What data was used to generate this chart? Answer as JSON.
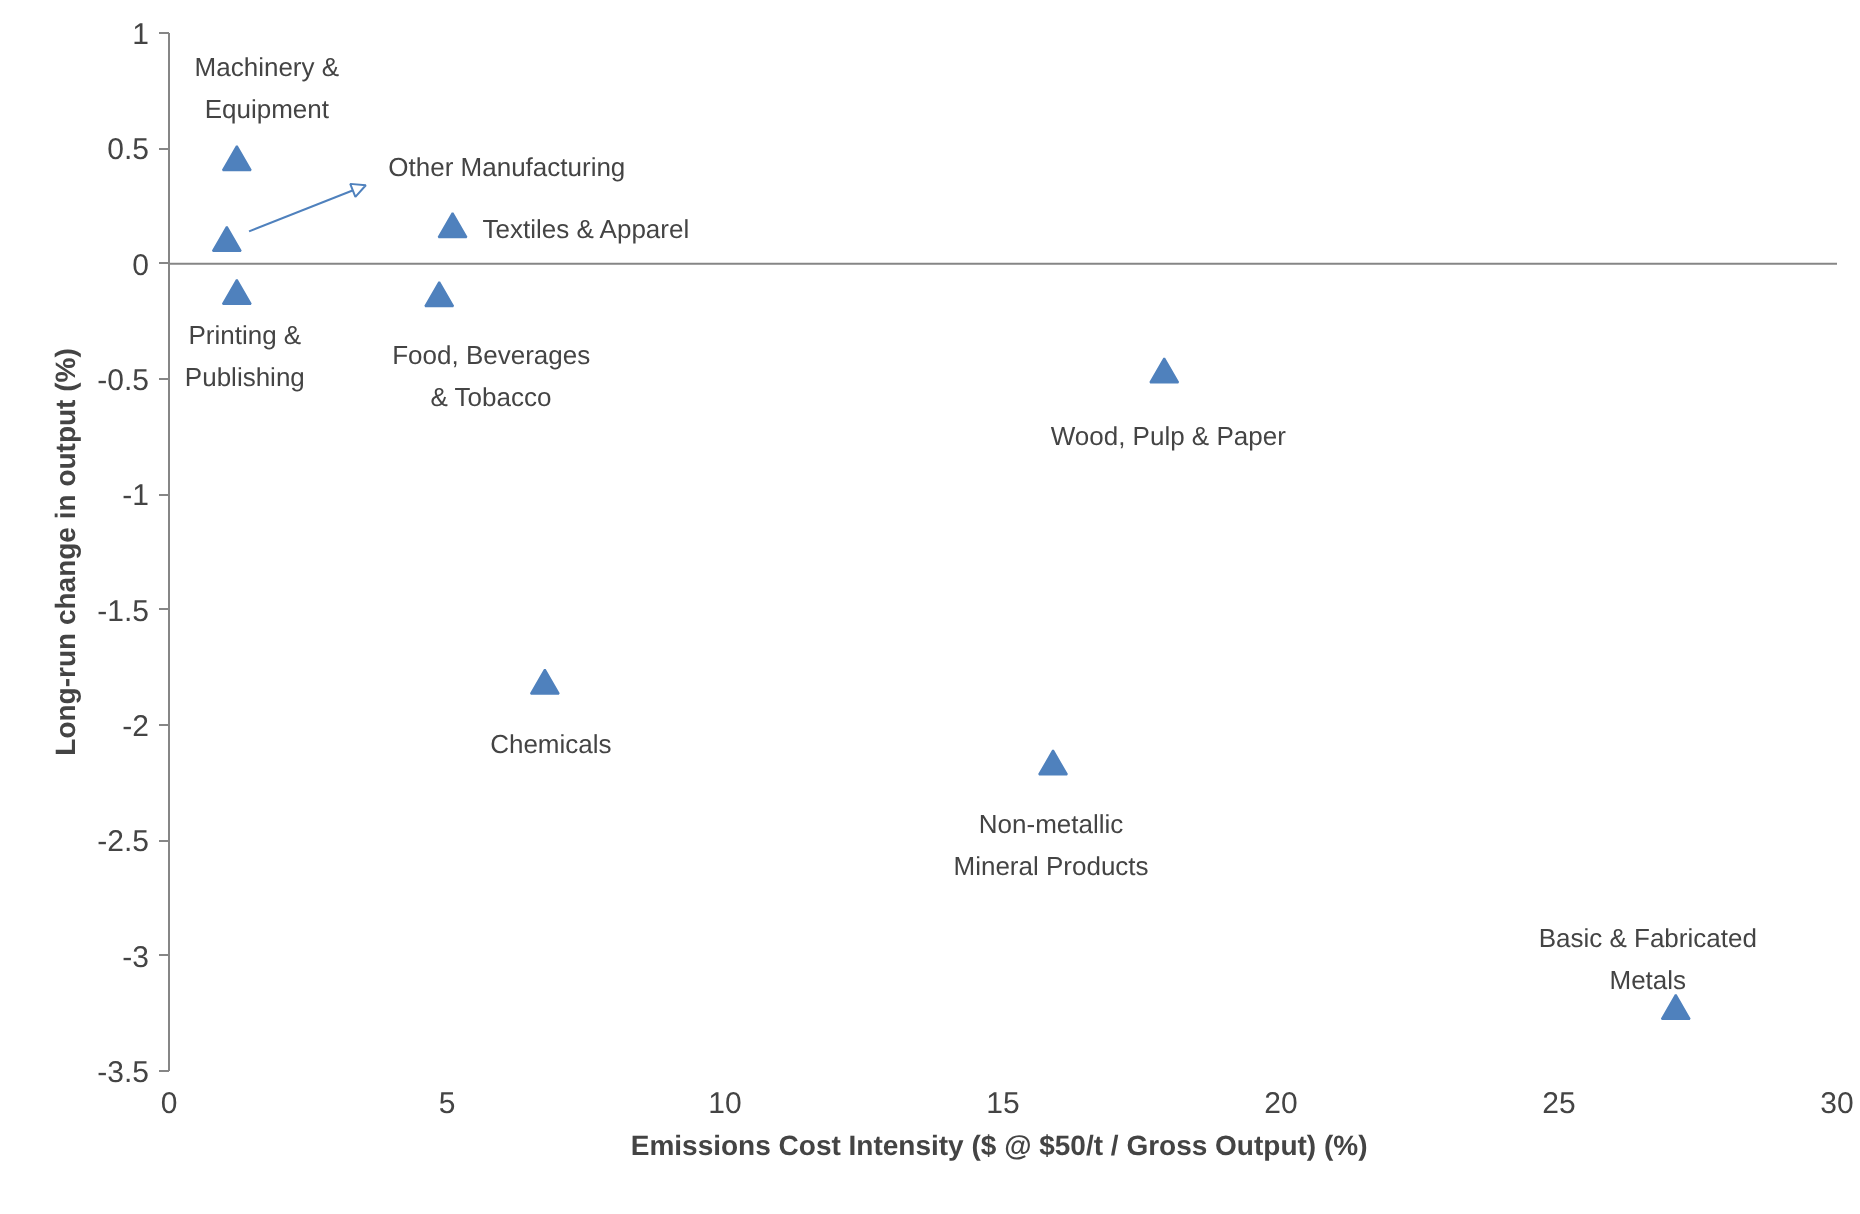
{
  "chart_data": {
    "type": "scatter",
    "xlabel": "Emissions Cost Intensity ($ @ $50/t / Gross Output)  (%)",
    "ylabel": "Long-run change in output (%)",
    "x": [
      1.22,
      1.04,
      1.22,
      5.1,
      4.86,
      17.9,
      6.76,
      15.9,
      27.1
    ],
    "series": [
      {
        "color": "#4f81bd",
        "values": [
          0.44,
          0.09,
          -0.14,
          0.15,
          -0.15,
          -0.48,
          -1.83,
          -2.18,
          -3.24
        ]
      }
    ],
    "marker": "triangle",
    "grid": false,
    "xlim": [
      0,
      30
    ],
    "xticks": [
      0,
      5,
      10,
      15,
      20,
      25,
      30
    ],
    "ylim": [
      -3.5,
      1
    ],
    "yticks": [
      1,
      0.5,
      0,
      -0.5,
      -1,
      -1.5,
      -2,
      -2.5,
      -3,
      -3.5
    ],
    "ref_lines": [
      {
        "axis": "y",
        "value": 0,
        "color": "#868686"
      }
    ],
    "annotations": [
      {
        "text": "Machinery &\nEquipment",
        "x": 1.22,
        "y": 0.44
      },
      "Other Manufacturing",
      {
        "text": "Printing &\nPublishing",
        "x": 1.22,
        "y": -0.14
      },
      {
        "text": "Textiles & Apparel",
        "x": 5.1,
        "y": 0.15
      },
      {
        "text": "Food, Beverages\n& Tobacco",
        "x": 4.86,
        "y": -0.15
      },
      {
        "text": "Wood, Pulp & Paper",
        "x": 17.9,
        "y": -0.48
      },
      {
        "text": "Chemicals",
        "x": 6.76,
        "y": -1.83
      },
      {
        "text": "Non-metallic\nMineral Products",
        "x": 15.9,
        "y": -2.18
      },
      {
        "text": "Basic & Fabricated\nMetals",
        "x": 27.1,
        "y": -3.24
      }
    ]
  }
}
